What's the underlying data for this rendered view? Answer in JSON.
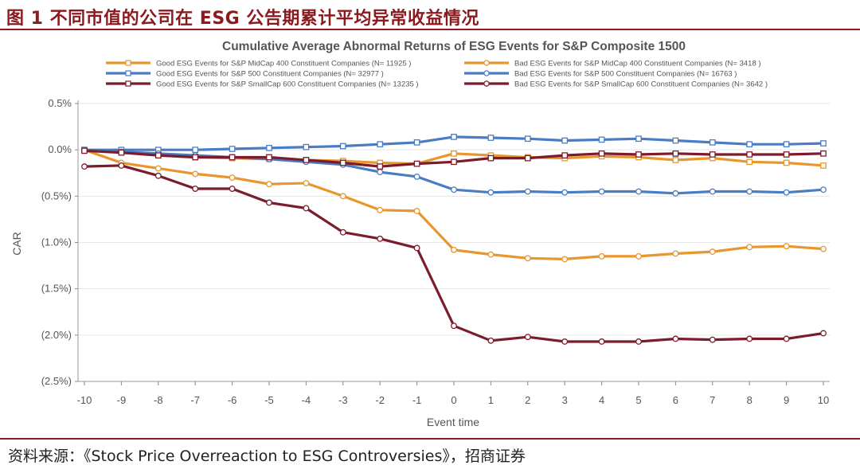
{
  "figure": {
    "title": "图 1  不同市值的公司在 ESG 公告期累计平均异常收益情况",
    "source": "资料来源：《Stock Price Overreaction to ESG Controversies》，招商证券"
  },
  "colors": {
    "orange": "#e8962e",
    "blue": "#4a7cc4",
    "maroon": "#7b1c2c",
    "rule": "#8b1a1f"
  },
  "chart_data": {
    "type": "line",
    "title": "Cumulative Average Abnormal Returns of ESG Events for S&P Composite 1500",
    "xlabel": "Event time",
    "ylabel": "CAR",
    "x": [
      -10,
      -9,
      -8,
      -7,
      -6,
      -5,
      -4,
      -3,
      -2,
      -1,
      0,
      1,
      2,
      3,
      4,
      5,
      6,
      7,
      8,
      9,
      10
    ],
    "x_tick_labels": [
      "-10",
      "-9",
      "-8",
      "-7",
      "-6",
      "-5",
      "-4",
      "-3",
      "-2",
      "-1",
      "0",
      "1",
      "2",
      "3",
      "4",
      "5",
      "6",
      "7",
      "8",
      "9",
      "10"
    ],
    "ylim": [
      -2.5,
      0.5
    ],
    "y_ticks": [
      0.5,
      0.0,
      -0.5,
      -1.0,
      -1.5,
      -2.0,
      -2.5
    ],
    "y_tick_labels": [
      "0.5%",
      "0.0%",
      "(0.5%)",
      "(1.0%)",
      "(1.5%)",
      "(2.0%)",
      "(2.5%)"
    ],
    "grid": "horizontal",
    "legend_position": "top",
    "series": [
      {
        "name": "Good ESG Events for S&P MidCap 400 Constituent Companies (N= 11925 )",
        "color": "#e8962e",
        "marker": "square",
        "values": [
          0.0,
          -0.03,
          -0.06,
          -0.08,
          -0.09,
          -0.1,
          -0.11,
          -0.12,
          -0.14,
          -0.15,
          -0.04,
          -0.06,
          -0.08,
          -0.09,
          -0.07,
          -0.08,
          -0.11,
          -0.09,
          -0.13,
          -0.14,
          -0.17
        ]
      },
      {
        "name": "Bad ESG Events for S&P MidCap 400 Constituent Companies (N= 3418 )",
        "color": "#e8962e",
        "marker": "circle",
        "values": [
          0.0,
          -0.14,
          -0.2,
          -0.26,
          -0.3,
          -0.37,
          -0.36,
          -0.5,
          -0.65,
          -0.66,
          -1.08,
          -1.13,
          -1.17,
          -1.18,
          -1.15,
          -1.15,
          -1.12,
          -1.1,
          -1.05,
          -1.04,
          -1.07
        ]
      },
      {
        "name": "Good ESG Events for S&P 500 Constituent Companies (N= 32977 )",
        "color": "#4a7cc4",
        "marker": "square",
        "values": [
          0.0,
          0.0,
          0.0,
          0.0,
          0.01,
          0.02,
          0.03,
          0.04,
          0.06,
          0.08,
          0.14,
          0.13,
          0.12,
          0.1,
          0.11,
          0.12,
          0.1,
          0.08,
          0.06,
          0.06,
          0.07
        ]
      },
      {
        "name": "Bad ESG Events for S&P 500 Constituent Companies (N= 16763 )",
        "color": "#4a7cc4",
        "marker": "circle",
        "values": [
          -0.01,
          -0.02,
          -0.04,
          -0.06,
          -0.08,
          -0.1,
          -0.13,
          -0.16,
          -0.24,
          -0.29,
          -0.43,
          -0.46,
          -0.45,
          -0.46,
          -0.45,
          -0.45,
          -0.47,
          -0.45,
          -0.45,
          -0.46,
          -0.43
        ]
      },
      {
        "name": "Good ESG Events for S&P SmallCap 600 Constituent Companies (N= 13235 )",
        "color": "#7b1c2c",
        "marker": "square",
        "values": [
          -0.01,
          -0.03,
          -0.06,
          -0.08,
          -0.08,
          -0.08,
          -0.11,
          -0.14,
          -0.18,
          -0.15,
          -0.13,
          -0.09,
          -0.09,
          -0.06,
          -0.04,
          -0.05,
          -0.04,
          -0.05,
          -0.05,
          -0.05,
          -0.04
        ]
      },
      {
        "name": "Bad ESG Events for S&P SmallCap 600 Constituent Companies (N= 3642 )",
        "color": "#7b1c2c",
        "marker": "circle",
        "values": [
          -0.18,
          -0.17,
          -0.28,
          -0.42,
          -0.42,
          -0.57,
          -0.63,
          -0.89,
          -0.96,
          -1.06,
          -1.9,
          -2.06,
          -2.02,
          -2.07,
          -2.07,
          -2.07,
          -2.04,
          -2.05,
          -2.04,
          -2.04,
          -1.98
        ]
      }
    ]
  }
}
